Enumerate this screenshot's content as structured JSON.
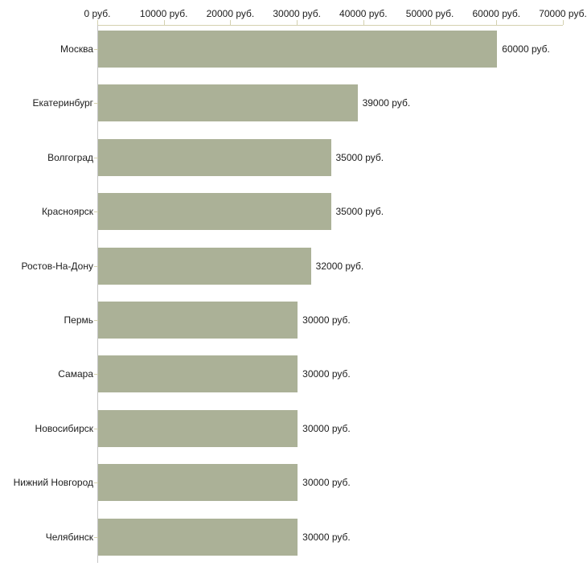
{
  "chart_data": {
    "type": "bar",
    "orientation": "horizontal",
    "title": "",
    "categories": [
      "Москва",
      "Екатеринбург",
      "Волгоград",
      "Красноярск",
      "Ростов-На-Дону",
      "Пермь",
      "Самара",
      "Новосибирск",
      "Нижний Новгород",
      "Челябинск"
    ],
    "values": [
      60000,
      39000,
      35000,
      35000,
      32000,
      30000,
      30000,
      30000,
      30000,
      30000
    ],
    "value_labels": [
      "60000 руб.",
      "39000 руб.",
      "35000 руб.",
      "35000 руб.",
      "32000 руб.",
      "30000 руб.",
      "30000 руб.",
      "30000 руб.",
      "30000 руб.",
      "30000 руб."
    ],
    "unit": "руб.",
    "xlabel": "",
    "ylabel": "",
    "x_axis": {
      "position": "top",
      "min": 0,
      "max": 70000,
      "tick_interval": 10000,
      "tick_labels": [
        "0 руб.",
        "10000 руб.",
        "20000 руб.",
        "30000 руб.",
        "40000 руб.",
        "50000 руб.",
        "60000 руб.",
        "70000 руб."
      ]
    },
    "grid": false,
    "legend": false,
    "colors": {
      "bar_fill": "#abb197",
      "axis_line": "#d4d1b0",
      "category_axis_line": "#c6c6c6",
      "text": "#1c1c1c",
      "background": "#ffffff"
    }
  }
}
